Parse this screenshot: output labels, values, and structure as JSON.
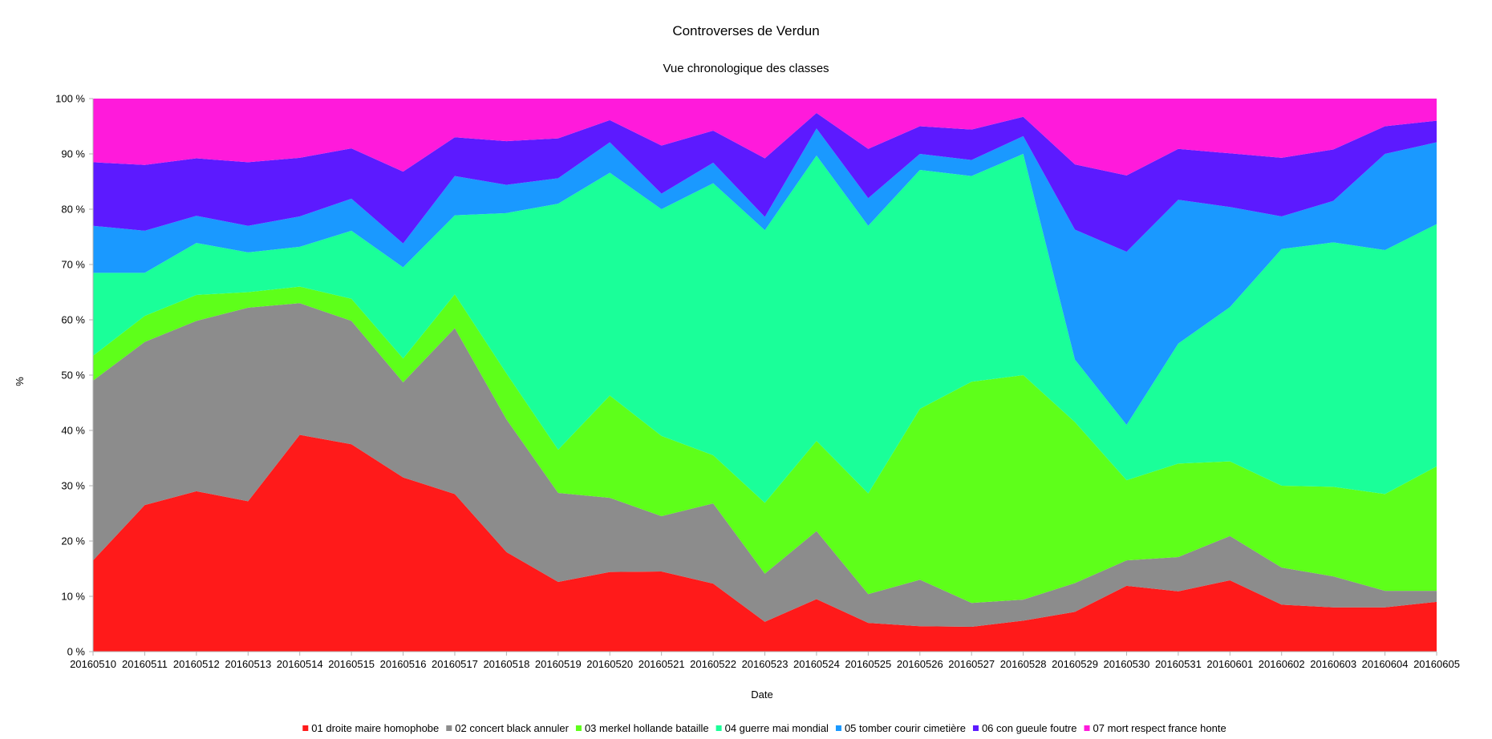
{
  "chart_data": {
    "type": "area",
    "stacked": "percent",
    "title": "Controverses de Verdun",
    "subtitle": "Vue chronologique des classes",
    "xlabel": "Date",
    "ylabel": "%",
    "ylim": [
      0,
      100
    ],
    "y_ticks": [
      "0 %",
      "10 %",
      "20 %",
      "30 %",
      "40 %",
      "50 %",
      "60 %",
      "70 %",
      "80 %",
      "90 %",
      "100 %"
    ],
    "grid": false,
    "legend_position": "bottom",
    "categories": [
      "20160510",
      "20160511",
      "20160512",
      "20160513",
      "20160514",
      "20160515",
      "20160516",
      "20160517",
      "20160518",
      "20160519",
      "20160520",
      "20160521",
      "20160522",
      "20160523",
      "20160524",
      "20160525",
      "20160526",
      "20160527",
      "20160528",
      "20160529",
      "20160530",
      "20160531",
      "20160601",
      "20160602",
      "20160603",
      "20160604",
      "20160605"
    ],
    "series": [
      {
        "name": "01 droite maire homophobe",
        "color": "#ff1a1a",
        "values": [
          16.5,
          26.5,
          29,
          27.2,
          39.2,
          37.5,
          31.5,
          28.5,
          18,
          12.6,
          14.4,
          14.5,
          12.3,
          5.4,
          9.5,
          5.2,
          4.6,
          4.5,
          5.6,
          7.2,
          11.9,
          10.9,
          12.9,
          8.5,
          8.0,
          8.0,
          9.0
        ]
      },
      {
        "name": "02 concert black annuler",
        "color": "#8c8c8c",
        "values": [
          32.5,
          29.5,
          30.8,
          35.0,
          23.8,
          22.3,
          17.2,
          30.0,
          24.0,
          16.1,
          13.4,
          10.0,
          14.5,
          8.7,
          12.3,
          5.2,
          8.4,
          4.3,
          3.8,
          5.2,
          4.6,
          6.2,
          8.0,
          6.7,
          5.6,
          3.0,
          2.0
        ]
      },
      {
        "name": "03 merkel hollande bataille",
        "color": "#5eff1a",
        "values": [
          4.5,
          4.7,
          4.7,
          2.8,
          3.0,
          4.0,
          4.3,
          6.1,
          8.3,
          7.8,
          18.5,
          14.5,
          8.7,
          12.8,
          16.3,
          18.2,
          30.9,
          40.0,
          40.6,
          29.1,
          14.5,
          16.9,
          13.5,
          14.8,
          16.2,
          17.5,
          22.5
        ]
      },
      {
        "name": "04 guerre mai mondial",
        "color": "#1aff99",
        "values": [
          15.0,
          7.8,
          9.4,
          7.2,
          7.2,
          12.3,
          16.5,
          14.3,
          29.0,
          44.5,
          40.3,
          41.0,
          49.2,
          49.3,
          51.6,
          48.4,
          43.2,
          37.2,
          40.0,
          11.3,
          10.0,
          21.7,
          27.9,
          42.8,
          44.2,
          44.1,
          43.8
        ]
      },
      {
        "name": "05 tomber courir cimetière",
        "color": "#1a99ff",
        "values": [
          8.5,
          7.6,
          4.9,
          4.8,
          5.5,
          5.8,
          4.3,
          7.1,
          5.1,
          4.6,
          5.5,
          2.8,
          3.7,
          2.4,
          4.9,
          5.0,
          2.9,
          2.9,
          3.2,
          23.5,
          31.3,
          26.0,
          18.1,
          5.9,
          7.5,
          17.4,
          14.8
        ]
      },
      {
        "name": "06 con gueule foutre",
        "color": "#5c1aff",
        "values": [
          11.5,
          11.9,
          10.4,
          11.5,
          10.6,
          9.1,
          13.0,
          7.0,
          7.9,
          7.2,
          4.0,
          8.7,
          5.8,
          10.6,
          2.8,
          8.9,
          5.0,
          5.5,
          3.5,
          11.8,
          13.8,
          9.2,
          9.7,
          10.6,
          9.3,
          5.0,
          3.9
        ]
      },
      {
        "name": "07 mort respect france honte",
        "color": "#ff1adb",
        "values": [
          11.5,
          12.0,
          10.8,
          11.5,
          10.7,
          9.0,
          13.2,
          7.0,
          7.7,
          7.2,
          3.9,
          8.5,
          5.8,
          10.8,
          2.6,
          9.1,
          5.0,
          5.6,
          3.3,
          11.9,
          13.9,
          9.1,
          9.9,
          10.7,
          9.2,
          5.0,
          4.0
        ]
      }
    ]
  }
}
